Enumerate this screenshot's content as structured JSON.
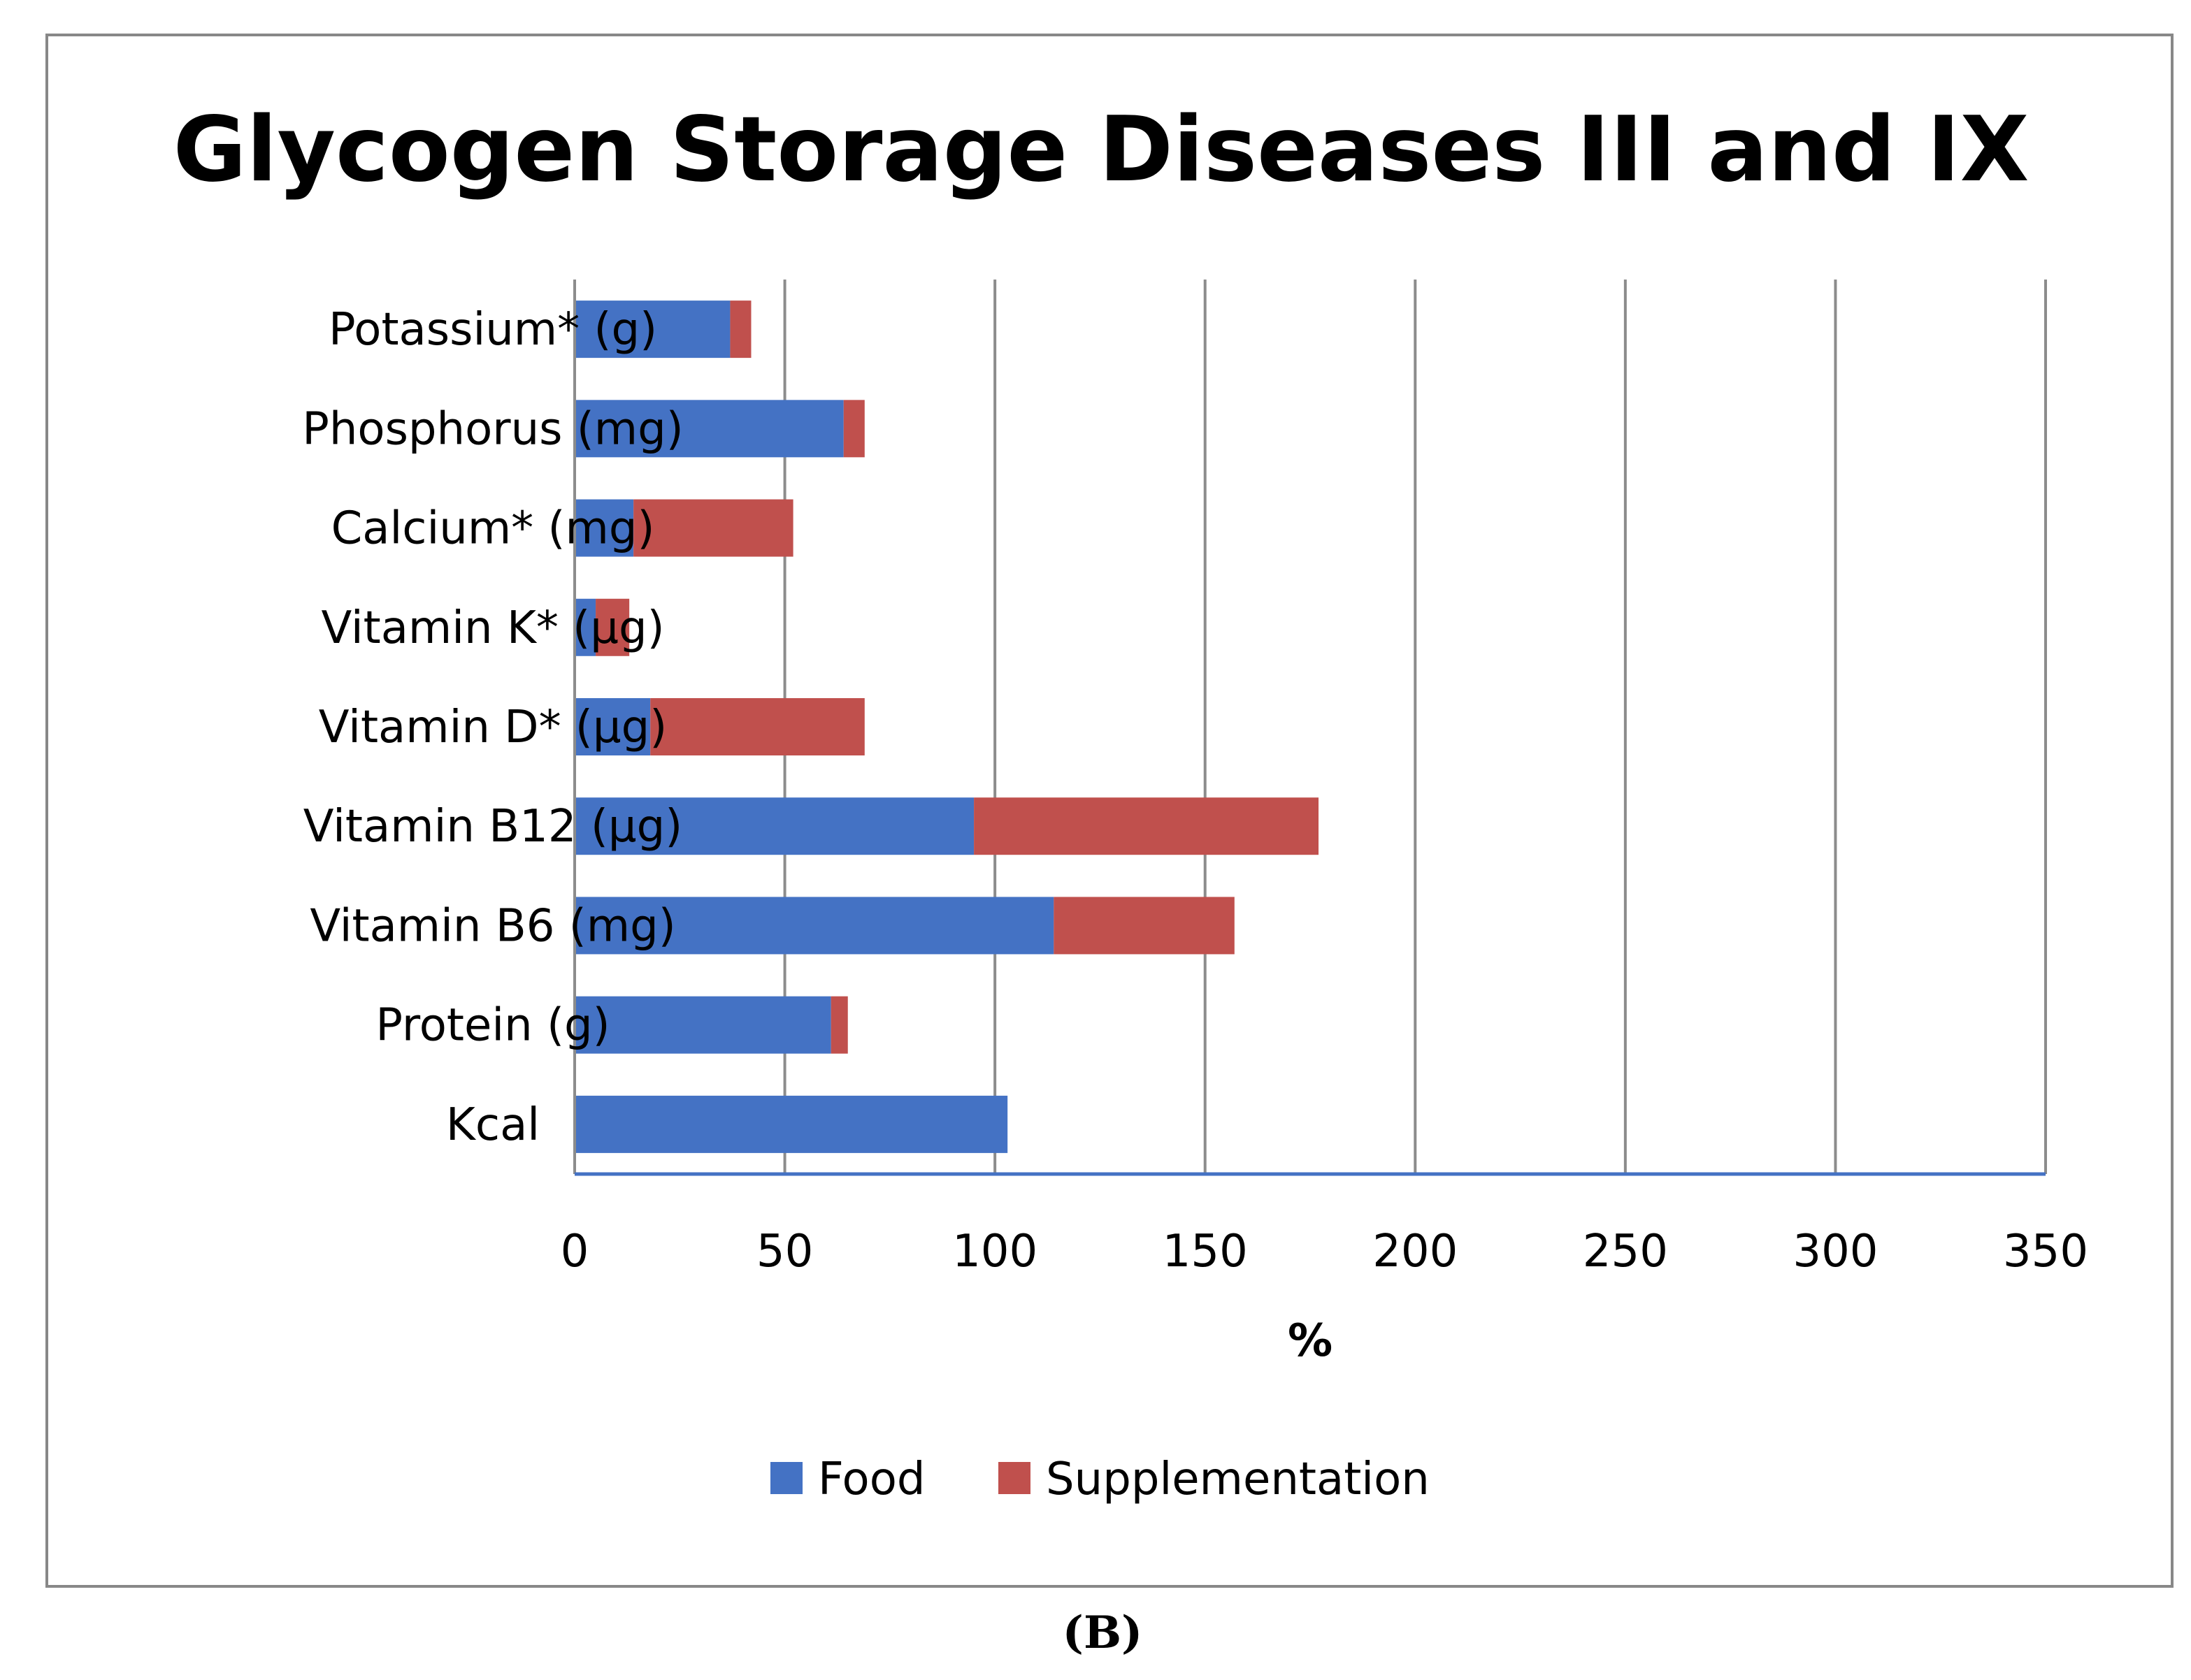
{
  "chart_data": {
    "type": "bar",
    "orientation": "horizontal",
    "stacked": true,
    "title": "Glycogen Storage Diseases III and IX",
    "xlabel": "%",
    "ylabel": "",
    "xlim": [
      0,
      350
    ],
    "xticks": [
      0,
      50,
      100,
      150,
      200,
      250,
      300,
      350
    ],
    "grid": "vertical",
    "legend_position": "bottom",
    "categories": [
      "Potassium* (g)",
      "Phosphorus (mg)",
      "Calcium* (mg)",
      "Vitamin K* (µg)",
      "Vitamin D* (µg)",
      "Vitamin B12 (µg)",
      "Vitamin B6 (mg)",
      "Protein (g)",
      "Kcal"
    ],
    "series": [
      {
        "name": "Food",
        "color": "#4472C4",
        "values": [
          37,
          64,
          14,
          5,
          18,
          95,
          114,
          61,
          103
        ]
      },
      {
        "name": "Supplementation",
        "color": "#C0504D",
        "values": [
          5,
          5,
          38,
          8,
          51,
          82,
          43,
          4,
          0
        ]
      }
    ]
  },
  "caption": "(B)"
}
